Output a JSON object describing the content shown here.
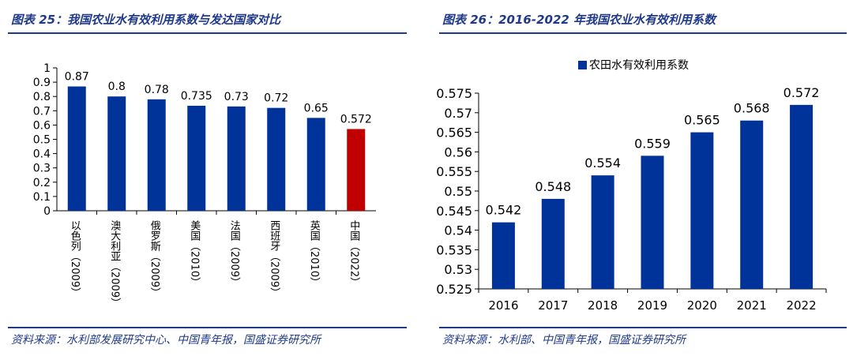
{
  "figure_left": {
    "title": "图表 25：我国农业水有效利用系数与发达国家对比",
    "source": "资料来源：水利部发展研究中心、中国青年报，国盛证券研究所"
  },
  "figure_right": {
    "title": "图表 26：2016-2022 年我国农业水有效利用系数",
    "source": "资料来源：水利部、中国青年报，国盛证券研究所"
  },
  "colors": {
    "primary": "#003399",
    "highlight": "#c00000",
    "accent": "#1f3a8a"
  },
  "chart_data": [
    {
      "type": "bar",
      "categories": [
        "以色列（2009）",
        "澳大利亚（2009）",
        "俄罗斯（2009）",
        "美国（2010）",
        "法国（2009）",
        "西班牙（2009）",
        "英国（2010）",
        "中国（2022）"
      ],
      "values": [
        0.87,
        0.8,
        0.78,
        0.735,
        0.73,
        0.72,
        0.65,
        0.572
      ],
      "value_labels": [
        "0.87",
        "0.8",
        "0.78",
        "0.735",
        "0.73",
        "0.72",
        "0.65",
        "0.572"
      ],
      "highlight_category": "中国（2022）",
      "ylim": [
        0,
        1
      ],
      "yticks": [
        "0",
        "0.1",
        "0.2",
        "0.3",
        "0.4",
        "0.5",
        "0.6",
        "0.7",
        "0.8",
        "0.9",
        "1"
      ],
      "xlabel": "",
      "ylabel": "",
      "grid": false,
      "legend": "none"
    },
    {
      "type": "bar",
      "categories": [
        "2016",
        "2017",
        "2018",
        "2019",
        "2020",
        "2021",
        "2022"
      ],
      "series": [
        {
          "name": "农田水有效利用系数",
          "values": [
            0.542,
            0.548,
            0.554,
            0.559,
            0.565,
            0.568,
            0.572
          ]
        }
      ],
      "value_labels": [
        "0.542",
        "0.548",
        "0.554",
        "0.559",
        "0.565",
        "0.568",
        "0.572"
      ],
      "ylim": [
        0.525,
        0.575
      ],
      "yticks": [
        "0.525",
        "0.53",
        "0.535",
        "0.54",
        "0.545",
        "0.55",
        "0.555",
        "0.56",
        "0.565",
        "0.57",
        "0.575"
      ],
      "xlabel": "",
      "ylabel": "",
      "grid": false,
      "legend": "top"
    }
  ]
}
